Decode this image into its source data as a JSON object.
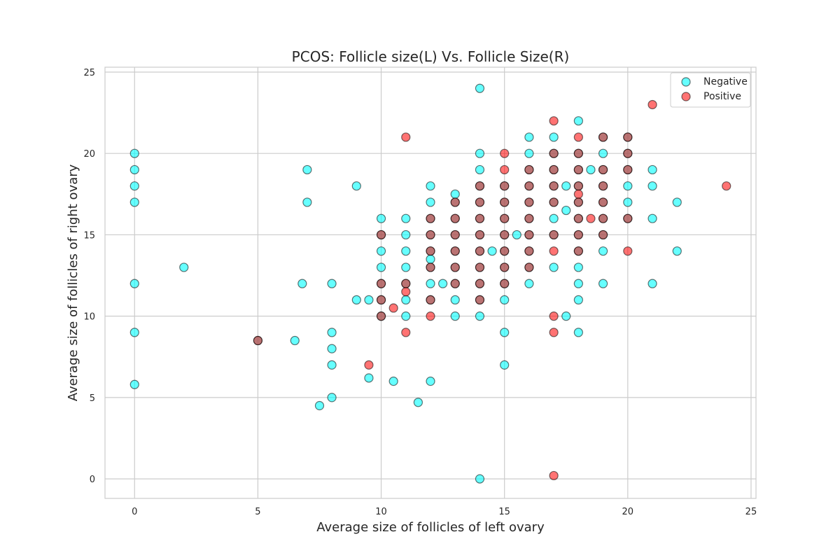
{
  "chart_data": {
    "type": "scatter",
    "title": "PCOS: Follicle size(L) Vs. Follicle Size(R)",
    "xlabel": "Average size of follicles of left ovary",
    "ylabel": "Average size of follicles of right ovary",
    "xlim": [
      -1.2,
      25.2
    ],
    "ylim": [
      -1.2,
      25.3
    ],
    "xticks": [
      0,
      5,
      10,
      15,
      20,
      25
    ],
    "yticks": [
      0,
      5,
      10,
      15,
      20,
      25
    ],
    "grid": true,
    "legend_position": "top-right",
    "series": [
      {
        "name": "Negative",
        "color": "#00FFFF",
        "edgecolor": "#000000",
        "opacity": 0.6,
        "points": [
          [
            0,
            20
          ],
          [
            0,
            19
          ],
          [
            0,
            18
          ],
          [
            0,
            17
          ],
          [
            0,
            12
          ],
          [
            0,
            9
          ],
          [
            0,
            5.8
          ],
          [
            2,
            13
          ],
          [
            5,
            8.5
          ],
          [
            6.5,
            8.5
          ],
          [
            6.8,
            12
          ],
          [
            7,
            19
          ],
          [
            7,
            17
          ],
          [
            7.5,
            4.5
          ],
          [
            8,
            12
          ],
          [
            8,
            9
          ],
          [
            8,
            8
          ],
          [
            8,
            7
          ],
          [
            8,
            5
          ],
          [
            9,
            18
          ],
          [
            9,
            11
          ],
          [
            9.5,
            11
          ],
          [
            9.5,
            6.2
          ],
          [
            10,
            16
          ],
          [
            10,
            15
          ],
          [
            10,
            14
          ],
          [
            10,
            13
          ],
          [
            10,
            12
          ],
          [
            10,
            11
          ],
          [
            10,
            10
          ],
          [
            10.5,
            6
          ],
          [
            11,
            16
          ],
          [
            11,
            15
          ],
          [
            11,
            14
          ],
          [
            11,
            13
          ],
          [
            11,
            12
          ],
          [
            11,
            11
          ],
          [
            11,
            10
          ],
          [
            11.5,
            4.7
          ],
          [
            12,
            18
          ],
          [
            12,
            17
          ],
          [
            12,
            16
          ],
          [
            12,
            15
          ],
          [
            12,
            14
          ],
          [
            12,
            13.5
          ],
          [
            12,
            13
          ],
          [
            12,
            12
          ],
          [
            12,
            11
          ],
          [
            12,
            6
          ],
          [
            12.5,
            12
          ],
          [
            13,
            17.5
          ],
          [
            13,
            17
          ],
          [
            13,
            16
          ],
          [
            13,
            15
          ],
          [
            13,
            14
          ],
          [
            13,
            13
          ],
          [
            13,
            12
          ],
          [
            13,
            11
          ],
          [
            13,
            10
          ],
          [
            14,
            24
          ],
          [
            14,
            20
          ],
          [
            14,
            19
          ],
          [
            14,
            18
          ],
          [
            14,
            17
          ],
          [
            14,
            16
          ],
          [
            14,
            15
          ],
          [
            14,
            14
          ],
          [
            14,
            13
          ],
          [
            14,
            12
          ],
          [
            14,
            11
          ],
          [
            14,
            10
          ],
          [
            14,
            0
          ],
          [
            14.5,
            14
          ],
          [
            15,
            18
          ],
          [
            15,
            17
          ],
          [
            15,
            16
          ],
          [
            15,
            15
          ],
          [
            15,
            14
          ],
          [
            15,
            13
          ],
          [
            15,
            12
          ],
          [
            15,
            11
          ],
          [
            15,
            9
          ],
          [
            15,
            7
          ],
          [
            15.5,
            15
          ],
          [
            16,
            21
          ],
          [
            16,
            20
          ],
          [
            16,
            19
          ],
          [
            16,
            18
          ],
          [
            16,
            17
          ],
          [
            16,
            16
          ],
          [
            16,
            15
          ],
          [
            16,
            14
          ],
          [
            16,
            13
          ],
          [
            16,
            12
          ],
          [
            17,
            21
          ],
          [
            17,
            20
          ],
          [
            17,
            19
          ],
          [
            17,
            18
          ],
          [
            17,
            17
          ],
          [
            17,
            16
          ],
          [
            17,
            15
          ],
          [
            17,
            13
          ],
          [
            17.5,
            18
          ],
          [
            17.5,
            16.5
          ],
          [
            17.5,
            10
          ],
          [
            18,
            22
          ],
          [
            18,
            20
          ],
          [
            18,
            19
          ],
          [
            18,
            18
          ],
          [
            18,
            17
          ],
          [
            18,
            16
          ],
          [
            18,
            15
          ],
          [
            18,
            14
          ],
          [
            18,
            13
          ],
          [
            18,
            12
          ],
          [
            18,
            11
          ],
          [
            18,
            9
          ],
          [
            18.5,
            19
          ],
          [
            19,
            21
          ],
          [
            19,
            20
          ],
          [
            19,
            19
          ],
          [
            19,
            18
          ],
          [
            19,
            17
          ],
          [
            19,
            16
          ],
          [
            19,
            15
          ],
          [
            19,
            14
          ],
          [
            19,
            12
          ],
          [
            20,
            21
          ],
          [
            20,
            20
          ],
          [
            20,
            19
          ],
          [
            20,
            18
          ],
          [
            20,
            17
          ],
          [
            20,
            16
          ],
          [
            21,
            19
          ],
          [
            21,
            18
          ],
          [
            21,
            16
          ],
          [
            21,
            12
          ],
          [
            22,
            17
          ],
          [
            22,
            14
          ]
        ]
      },
      {
        "name": "Positive",
        "color": "#FF0000",
        "edgecolor": "#000000",
        "opacity": 0.55,
        "points": [
          [
            5,
            8.5
          ],
          [
            9.5,
            7
          ],
          [
            10,
            15
          ],
          [
            10,
            12
          ],
          [
            10,
            11
          ],
          [
            10,
            10
          ],
          [
            10.5,
            10.5
          ],
          [
            11,
            21
          ],
          [
            11,
            12
          ],
          [
            11,
            11.5
          ],
          [
            11,
            9
          ],
          [
            12,
            16
          ],
          [
            12,
            15
          ],
          [
            12,
            14
          ],
          [
            12,
            13
          ],
          [
            12,
            11
          ],
          [
            12,
            10
          ],
          [
            13,
            17
          ],
          [
            13,
            16
          ],
          [
            13,
            15
          ],
          [
            13,
            14
          ],
          [
            13,
            13
          ],
          [
            13,
            12
          ],
          [
            14,
            18
          ],
          [
            14,
            17
          ],
          [
            14,
            16
          ],
          [
            14,
            15
          ],
          [
            14,
            14
          ],
          [
            14,
            13
          ],
          [
            14,
            12
          ],
          [
            14,
            11
          ],
          [
            15,
            20
          ],
          [
            15,
            19
          ],
          [
            15,
            18
          ],
          [
            15,
            17
          ],
          [
            15,
            16
          ],
          [
            15,
            15
          ],
          [
            15,
            14
          ],
          [
            15,
            13
          ],
          [
            15,
            12
          ],
          [
            16,
            19
          ],
          [
            16,
            18
          ],
          [
            16,
            17
          ],
          [
            16,
            16
          ],
          [
            16,
            15
          ],
          [
            16,
            14
          ],
          [
            16,
            13
          ],
          [
            17,
            22
          ],
          [
            17,
            20
          ],
          [
            17,
            19
          ],
          [
            17,
            18
          ],
          [
            17,
            17
          ],
          [
            17,
            15
          ],
          [
            17,
            14
          ],
          [
            17,
            10
          ],
          [
            17,
            9
          ],
          [
            17,
            0.2
          ],
          [
            18,
            21
          ],
          [
            18,
            20
          ],
          [
            18,
            19
          ],
          [
            18,
            18
          ],
          [
            18,
            17.5
          ],
          [
            18,
            17
          ],
          [
            18,
            16
          ],
          [
            18,
            15
          ],
          [
            18,
            14
          ],
          [
            18.5,
            16
          ],
          [
            19,
            21
          ],
          [
            19,
            19
          ],
          [
            19,
            18
          ],
          [
            19,
            17
          ],
          [
            19,
            16
          ],
          [
            19,
            15
          ],
          [
            20,
            21
          ],
          [
            20,
            20
          ],
          [
            20,
            19
          ],
          [
            20,
            16
          ],
          [
            20,
            14
          ],
          [
            21,
            23
          ],
          [
            24,
            18
          ]
        ]
      }
    ]
  }
}
